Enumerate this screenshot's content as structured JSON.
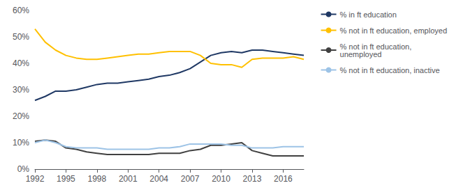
{
  "chart_data": {
    "type": "line",
    "x": [
      1992,
      1993,
      1994,
      1995,
      1996,
      1997,
      1998,
      1999,
      2000,
      2001,
      2002,
      2003,
      2004,
      2005,
      2006,
      2007,
      2008,
      2009,
      2010,
      2011,
      2012,
      2013,
      2014,
      2015,
      2016,
      2017,
      2018
    ],
    "series": [
      {
        "name": "% in ft education",
        "color": "#1f3864",
        "values": [
          26,
          27.5,
          29.5,
          29.5,
          30,
          31,
          32,
          32.5,
          32.5,
          33,
          33.5,
          34,
          35,
          35.5,
          36.5,
          38,
          40.5,
          43,
          44,
          44.5,
          44,
          45,
          45,
          44.5,
          44,
          43.5,
          43
        ]
      },
      {
        "name": "% not in ft education, employed",
        "color": "#ffc000",
        "values": [
          53,
          48,
          45,
          43,
          42,
          41.5,
          41.5,
          42,
          42.5,
          43,
          43.5,
          43.5,
          44,
          44.5,
          44.5,
          44.5,
          43,
          40,
          39.5,
          39.5,
          38.5,
          41.5,
          42,
          42,
          42,
          42.5,
          41.5
        ]
      },
      {
        "name": "% not in ft education,\nunemployed",
        "color": "#404040",
        "values": [
          10.5,
          11,
          10.5,
          8,
          7.5,
          6.5,
          6,
          5.5,
          5.5,
          5.5,
          5.5,
          5.5,
          6,
          6,
          6,
          7,
          7.5,
          9,
          9,
          9.5,
          10,
          7,
          6,
          5,
          5,
          5,
          5
        ]
      },
      {
        "name": "% not in ft education, inactive",
        "color": "#9dc3e6",
        "values": [
          10,
          11,
          10,
          8.5,
          8,
          8,
          8,
          7.5,
          7.5,
          7.5,
          7.5,
          7.5,
          8,
          8,
          8.5,
          9.5,
          9.5,
          9.5,
          9.5,
          9,
          9,
          8,
          8,
          8,
          8.5,
          8.5,
          8.5
        ]
      }
    ],
    "xlim": [
      1992,
      2018
    ],
    "xticks": [
      1992,
      1995,
      1998,
      2001,
      2004,
      2007,
      2010,
      2013,
      2016
    ],
    "ylim": [
      0,
      60
    ],
    "yticks": [
      {
        "value": 0,
        "label": "0%"
      },
      {
        "value": 10,
        "label": "10%"
      },
      {
        "value": 20,
        "label": "20%"
      },
      {
        "value": 30,
        "label": "30%"
      },
      {
        "value": 40,
        "label": "40%"
      },
      {
        "value": 50,
        "label": "50%"
      },
      {
        "value": 60,
        "label": "60%"
      }
    ],
    "grid": false,
    "legend": "right"
  }
}
